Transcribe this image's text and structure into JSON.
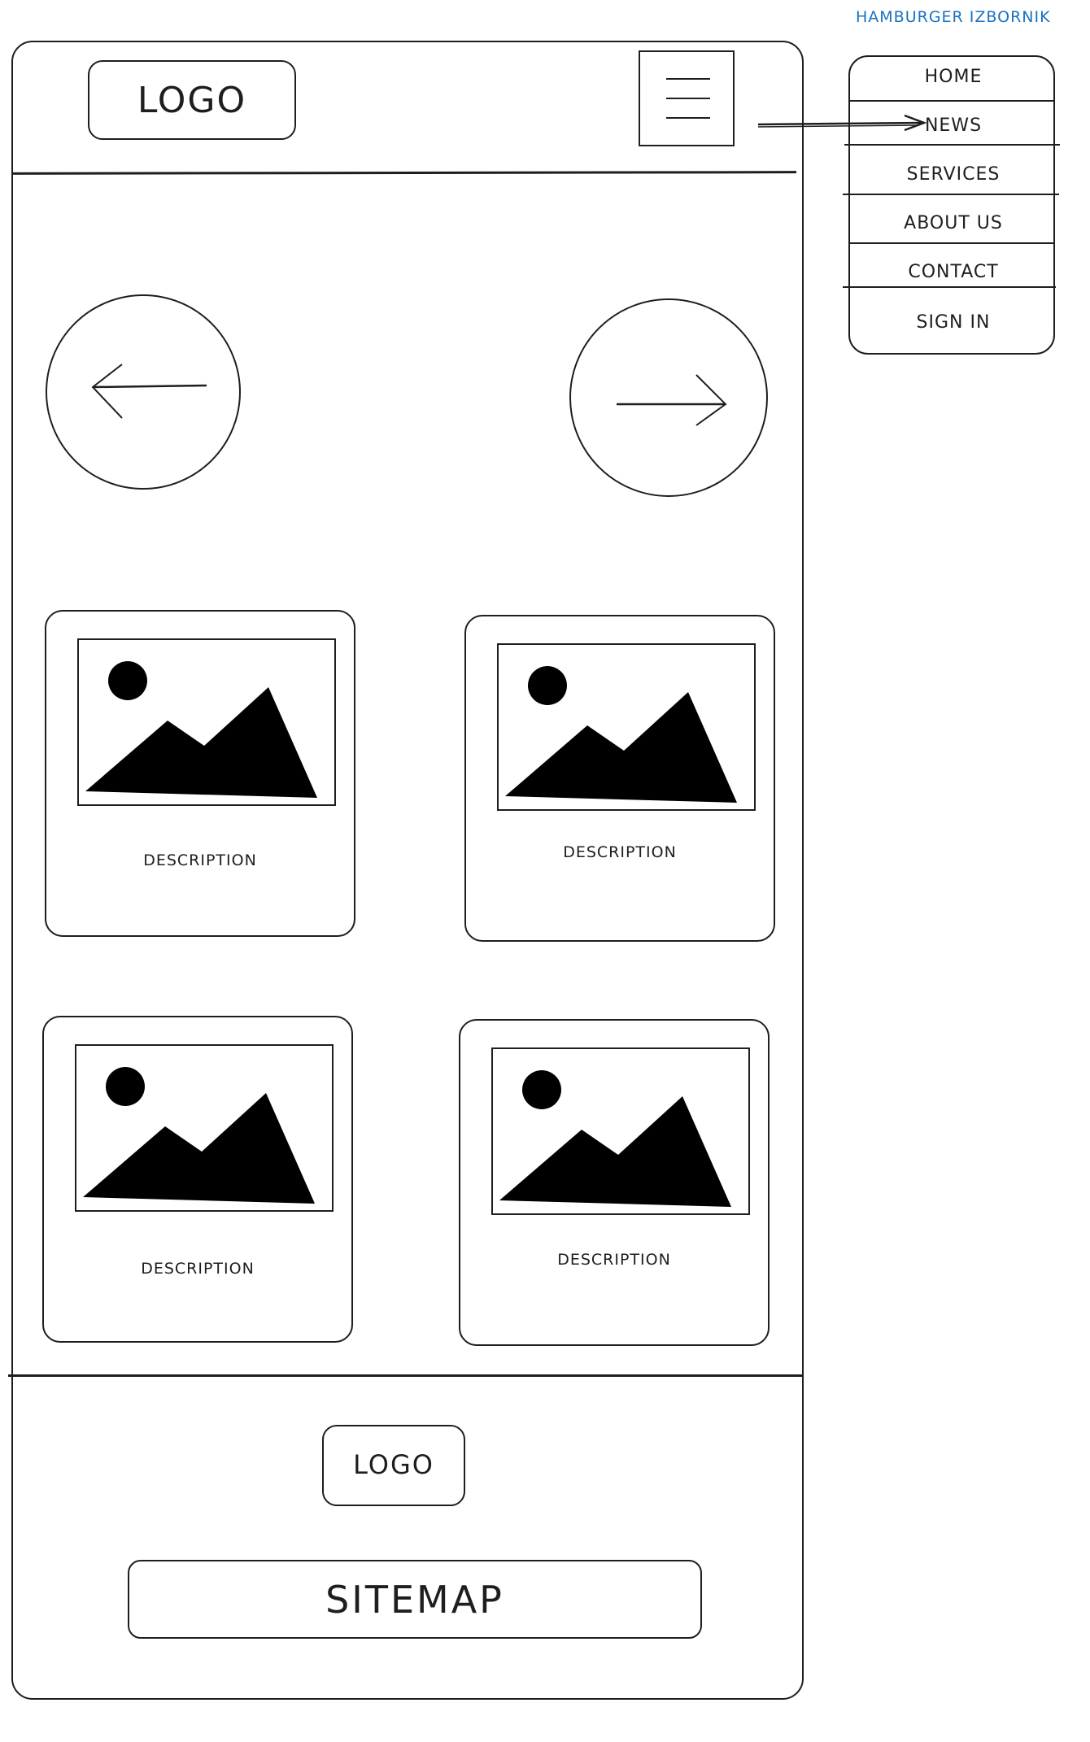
{
  "header": {
    "logo_label": "LOGO"
  },
  "cards": [
    {
      "description": "DESCRIPTION"
    },
    {
      "description": "DESCRIPTION"
    },
    {
      "description": "DESCRIPTION"
    },
    {
      "description": "DESCRIPTION"
    }
  ],
  "footer": {
    "logo_label": "LOGO",
    "sitemap_label": "SITEMAP"
  },
  "menu": {
    "title": "HAMBURGER IZBORNIK",
    "items": [
      "HOME",
      "NEWS",
      "SERVICES",
      "ABOUT US",
      "CONTACT",
      "SIGN IN"
    ]
  },
  "colors": {
    "stroke": "#1e1e1e",
    "annotation": "#1971c2",
    "background": "#ffffff"
  },
  "icons": {
    "menu": "hamburger-icon",
    "prev": "arrow-left-icon",
    "next": "arrow-right-icon",
    "placeholder": "image-placeholder-icon"
  }
}
